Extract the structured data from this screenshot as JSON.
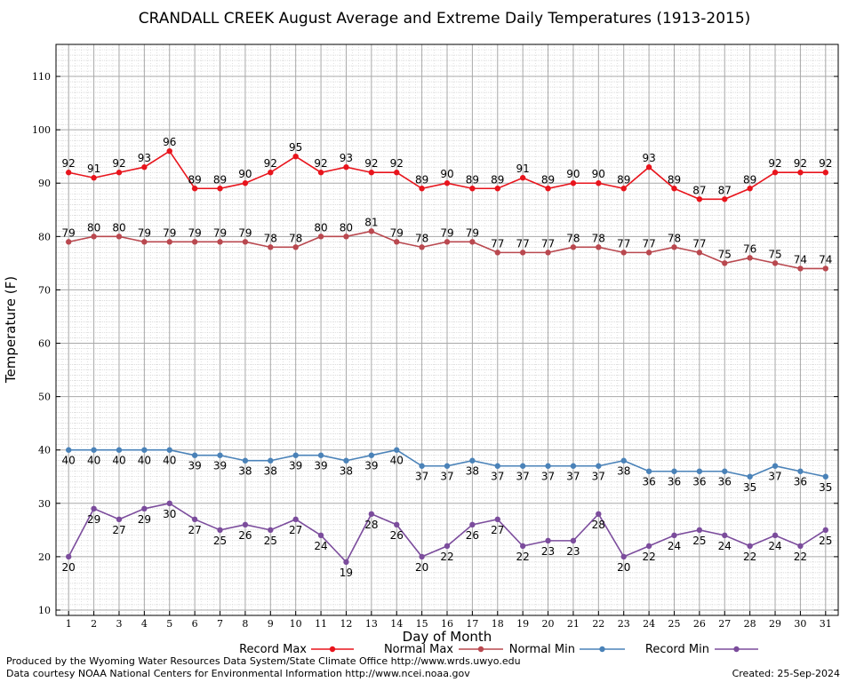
{
  "chart_data": {
    "type": "line",
    "title": "CRANDALL CREEK August Average and Extreme Daily Temperatures (1913-2015)",
    "xlabel": "Day of Month",
    "ylabel": "Temperature (F)",
    "xlim": [
      0.5,
      31.5
    ],
    "ylim": [
      9,
      116
    ],
    "yticks": [
      10,
      20,
      30,
      40,
      50,
      60,
      70,
      80,
      90,
      100,
      110
    ],
    "x": [
      1,
      2,
      3,
      4,
      5,
      6,
      7,
      8,
      9,
      10,
      11,
      12,
      13,
      14,
      15,
      16,
      17,
      18,
      19,
      20,
      21,
      22,
      23,
      24,
      25,
      26,
      27,
      28,
      29,
      30,
      31
    ],
    "grid": true,
    "legend_position": "bottom",
    "series": [
      {
        "name": "Record Max",
        "color": "#e8141c",
        "label_side": "above",
        "values": [
          92,
          91,
          92,
          93,
          96,
          89,
          89,
          90,
          92,
          95,
          92,
          93,
          92,
          92,
          89,
          90,
          89,
          89,
          91,
          89,
          90,
          90,
          89,
          93,
          89,
          87,
          87,
          89,
          92,
          92,
          92
        ]
      },
      {
        "name": "Normal Max",
        "color": "#b9484f",
        "label_side": "above",
        "values": [
          79,
          80,
          80,
          79,
          79,
          79,
          79,
          79,
          78,
          78,
          80,
          80,
          81,
          79,
          78,
          79,
          79,
          77,
          77,
          77,
          78,
          78,
          77,
          77,
          78,
          77,
          75,
          76,
          75,
          74,
          74
        ]
      },
      {
        "name": "Normal Min",
        "color": "#4a82b8",
        "label_side": "below",
        "values": [
          40,
          40,
          40,
          40,
          40,
          39,
          39,
          38,
          38,
          39,
          39,
          38,
          39,
          40,
          37,
          37,
          38,
          37,
          37,
          37,
          37,
          37,
          38,
          36,
          36,
          36,
          36,
          35,
          37,
          36,
          35
        ]
      },
      {
        "name": "Record Min",
        "color": "#7b4c9c",
        "label_side": "below",
        "values": [
          20,
          29,
          27,
          29,
          30,
          27,
          25,
          26,
          25,
          27,
          24,
          19,
          28,
          26,
          20,
          22,
          26,
          27,
          22,
          23,
          23,
          28,
          20,
          22,
          24,
          25,
          24,
          22,
          24,
          22,
          25
        ]
      }
    ]
  },
  "footer": {
    "left_line1": "Produced by the Wyoming Water Resources Data System/State Climate Office http://www.wrds.uwyo.edu",
    "left_line2": "Data courtesy NOAA National Centers for Environmental Information http://www.ncei.noaa.gov",
    "created": "Created:  25-Sep-2024"
  }
}
